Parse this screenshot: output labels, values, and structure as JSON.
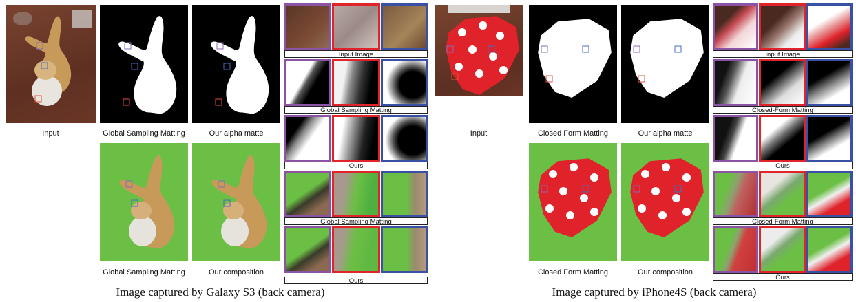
{
  "left": {
    "input_label": "Input",
    "method_label": "Global Sampling Matting",
    "ours_alpha_label": "Our alpha matte",
    "method_comp_label": "Global Sampling Matting",
    "ours_comp_label": "Our composition",
    "zoom_labels": [
      "Input Image",
      "Global Sampling Matting",
      "Ours",
      "Global Sampling Matting",
      "Ours"
    ],
    "caption": "Image captured by Galaxy S3 (back camera)"
  },
  "right": {
    "input_label": "Input",
    "method_label": "Closed Form Matting",
    "ours_alpha_label": "Our alpha matte",
    "method_comp_label": "Closed Form Matting",
    "ours_comp_label": "Our composition",
    "zoom_labels": [
      "Input Image",
      "Closed-Form Matting",
      "Ours",
      "Closed-Form Matting",
      "Ours"
    ],
    "caption": "Image captured by iPhone4S (back camera)"
  },
  "colors": {
    "purple_box": "#8b52a6",
    "red_box": "#e0242a",
    "blue_box": "#3a50a4",
    "composite_green": "#6cbf45",
    "table_brown": "#6b3a2a"
  }
}
